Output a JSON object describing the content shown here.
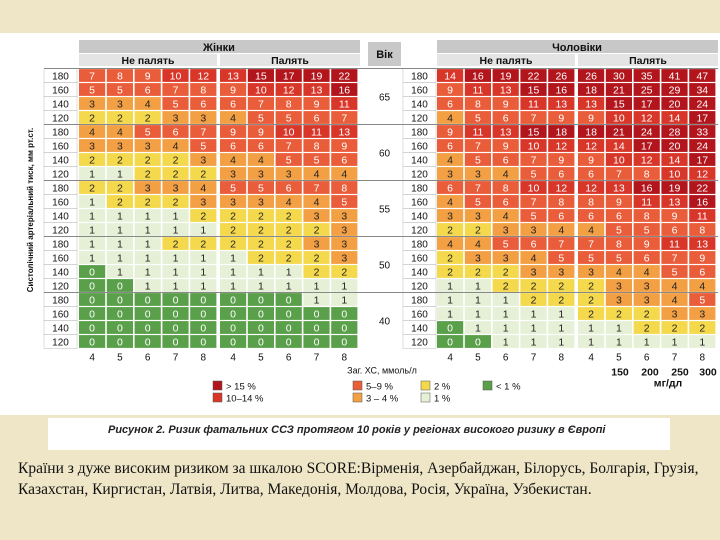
{
  "chart_data": {
    "type": "heatmap",
    "title": "",
    "female": {
      "label": "Жінки",
      "nonsmoker_label": "Не палять",
      "smoker_label": "Палять"
    },
    "male": {
      "label": "Чоловіки",
      "nonsmoker_label": "Не палять",
      "smoker_label": "Палять"
    },
    "age_label": "Вік",
    "ages": [
      "65",
      "60",
      "55",
      "50",
      "40"
    ],
    "sbp_label": "Систолічний артеріальний тиск, мм рт.ст.",
    "sbp_levels": [
      "180",
      "160",
      "140",
      "120"
    ],
    "chol_mmol": [
      "4",
      "5",
      "6",
      "7",
      "8"
    ],
    "chol_label": "Заг. ХС, ммоль/л",
    "mgdl_ticks": [
      "150",
      "200",
      "250",
      "300"
    ],
    "mgdl_unit": "мг/дл",
    "risk_values": {
      "female_nonsmoker": [
        [
          7,
          8,
          9,
          10,
          12
        ],
        [
          5,
          5,
          6,
          7,
          8
        ],
        [
          3,
          3,
          4,
          5,
          6
        ],
        [
          2,
          2,
          2,
          3,
          3
        ],
        [
          4,
          4,
          5,
          6,
          7
        ],
        [
          3,
          3,
          3,
          4,
          5
        ],
        [
          2,
          2,
          2,
          2,
          3
        ],
        [
          1,
          1,
          2,
          2,
          2
        ],
        [
          2,
          2,
          3,
          3,
          4
        ],
        [
          1,
          2,
          2,
          2,
          3
        ],
        [
          1,
          1,
          1,
          1,
          2
        ],
        [
          1,
          1,
          1,
          1,
          1
        ],
        [
          1,
          1,
          1,
          2,
          2
        ],
        [
          1,
          1,
          1,
          1,
          1
        ],
        [
          0,
          1,
          1,
          1,
          1
        ],
        [
          0,
          0,
          1,
          1,
          1
        ],
        [
          0,
          0,
          0,
          0,
          0
        ],
        [
          0,
          0,
          0,
          0,
          0
        ],
        [
          0,
          0,
          0,
          0,
          0
        ],
        [
          0,
          0,
          0,
          0,
          0
        ]
      ],
      "female_smoker": [
        [
          13,
          15,
          17,
          19,
          22
        ],
        [
          9,
          10,
          12,
          13,
          16
        ],
        [
          6,
          7,
          8,
          9,
          11
        ],
        [
          4,
          5,
          5,
          6,
          7
        ],
        [
          9,
          9,
          10,
          11,
          13
        ],
        [
          6,
          6,
          7,
          8,
          9
        ],
        [
          4,
          4,
          5,
          5,
          6
        ],
        [
          3,
          3,
          3,
          4,
          4
        ],
        [
          5,
          5,
          6,
          7,
          8
        ],
        [
          3,
          3,
          4,
          4,
          5
        ],
        [
          2,
          2,
          2,
          3,
          3
        ],
        [
          2,
          2,
          2,
          2,
          3
        ],
        [
          2,
          2,
          2,
          3,
          3
        ],
        [
          1,
          2,
          2,
          2,
          3
        ],
        [
          1,
          1,
          1,
          2,
          2
        ],
        [
          1,
          1,
          1,
          1,
          1
        ],
        [
          0,
          0,
          0,
          1,
          1
        ],
        [
          0,
          0,
          0,
          0,
          0
        ],
        [
          0,
          0,
          0,
          0,
          0
        ],
        [
          0,
          0,
          0,
          0,
          0
        ]
      ],
      "male_nonsmoker": [
        [
          14,
          16,
          19,
          22,
          26
        ],
        [
          9,
          11,
          13,
          15,
          16
        ],
        [
          6,
          8,
          9,
          11,
          13
        ],
        [
          4,
          5,
          6,
          7,
          9
        ],
        [
          9,
          11,
          13,
          15,
          18
        ],
        [
          6,
          7,
          9,
          10,
          12
        ],
        [
          4,
          5,
          6,
          7,
          9
        ],
        [
          3,
          3,
          4,
          5,
          6
        ],
        [
          6,
          7,
          8,
          10,
          12
        ],
        [
          4,
          5,
          6,
          7,
          8
        ],
        [
          3,
          3,
          4,
          5,
          6
        ],
        [
          2,
          2,
          3,
          3,
          4
        ],
        [
          4,
          4,
          5,
          6,
          7
        ],
        [
          2,
          3,
          3,
          4,
          5
        ],
        [
          2,
          2,
          2,
          3,
          3
        ],
        [
          1,
          1,
          2,
          2,
          2
        ],
        [
          1,
          1,
          1,
          2,
          2
        ],
        [
          1,
          1,
          1,
          1,
          1
        ],
        [
          0,
          1,
          1,
          1,
          1
        ],
        [
          0,
          0,
          1,
          1,
          1
        ]
      ],
      "male_smoker": [
        [
          26,
          30,
          35,
          41,
          47
        ],
        [
          18,
          21,
          25,
          29,
          34
        ],
        [
          13,
          15,
          17,
          20,
          24
        ],
        [
          9,
          10,
          12,
          14,
          17
        ],
        [
          18,
          21,
          24,
          28,
          33
        ],
        [
          12,
          14,
          17,
          20,
          24
        ],
        [
          9,
          10,
          12,
          14,
          17
        ],
        [
          6,
          7,
          8,
          10,
          12
        ],
        [
          12,
          13,
          16,
          19,
          22
        ],
        [
          8,
          9,
          11,
          13,
          16
        ],
        [
          6,
          6,
          8,
          9,
          11
        ],
        [
          4,
          5,
          5,
          6,
          8
        ],
        [
          7,
          8,
          9,
          11,
          13
        ],
        [
          5,
          5,
          6,
          7,
          9
        ],
        [
          3,
          4,
          4,
          5,
          6
        ],
        [
          2,
          3,
          3,
          4,
          4
        ],
        [
          2,
          3,
          3,
          4,
          5
        ],
        [
          2,
          2,
          2,
          3,
          3
        ],
        [
          1,
          1,
          2,
          2,
          2
        ],
        [
          1,
          1,
          1,
          1,
          1
        ]
      ]
    },
    "legend": [
      {
        "label": "> 15 %",
        "color": "#b3151c"
      },
      {
        "label": "10–14 %",
        "color": "#d9362a"
      },
      {
        "label": "5–9 %",
        "color": "#ea5d3a"
      },
      {
        "label": "3 – 4 %",
        "color": "#f3a044"
      },
      {
        "label": "2 %",
        "color": "#f5d94c"
      },
      {
        "label": "1 %",
        "color": "#e6f0d6"
      },
      {
        "label": "< 1 %",
        "color": "#5aa04a"
      }
    ]
  },
  "caption": "Рисунок 2. Ризик фатальних ССЗ протягом 10 років у регіонах високого ризику в Європі",
  "note": "Країни з дуже високим ризиком за шкалою SCORE:Вірменія, Азербайджан, Білорусь, Болгарія, Грузія, Казахстан, Киргистан, Латвія, Литва, Македонія, Молдова, Росія, Україна, Узбекистан."
}
